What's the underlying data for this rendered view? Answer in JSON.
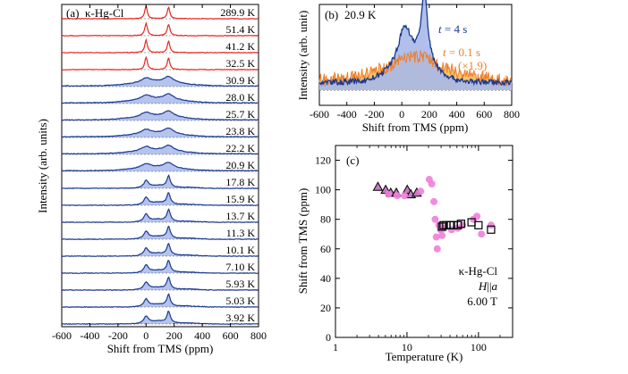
{
  "colors": {
    "red": "#e8261e",
    "blue": "#1a3a8f",
    "fill_blue": "#a8b8ea",
    "orange": "#ef7d26",
    "fill_orange": "#f6c56b",
    "pink": "#ef7fd9",
    "triangle_fill": "#c779bf"
  },
  "chart_data": [
    {
      "type": "line",
      "panel_label": "(a)",
      "title": "κ-Hg-Cl",
      "xlabel": "Shift from TMS (ppm)",
      "ylabel": "Intensity (arb. units)",
      "xlim": [
        -600,
        800
      ],
      "xticks": [
        "-600",
        "-400",
        "-200",
        "0",
        "200",
        "400",
        "600",
        "800"
      ],
      "series": [
        {
          "name": "289.9 K",
          "temperature_K": 289.9,
          "style": "two-peak",
          "color": "red"
        },
        {
          "name": "51.4 K",
          "temperature_K": 51.4,
          "style": "two-peak",
          "color": "red"
        },
        {
          "name": "41.2 K",
          "temperature_K": 41.2,
          "style": "two-peak",
          "color": "red"
        },
        {
          "name": "32.5 K",
          "temperature_K": 32.5,
          "style": "two-peak",
          "color": "red"
        },
        {
          "name": "30.9 K",
          "temperature_K": 30.9,
          "style": "broad",
          "color": "blue"
        },
        {
          "name": "28.0 K",
          "temperature_K": 28.0,
          "style": "broad",
          "color": "blue"
        },
        {
          "name": "25.7 K",
          "temperature_K": 25.7,
          "style": "broad",
          "color": "blue"
        },
        {
          "name": "23.8 K",
          "temperature_K": 23.8,
          "style": "broad",
          "color": "blue"
        },
        {
          "name": "22.2 K",
          "temperature_K": 22.2,
          "style": "broad",
          "color": "blue"
        },
        {
          "name": "20.9 K",
          "temperature_K": 20.9,
          "style": "broad",
          "color": "blue"
        },
        {
          "name": "17.8 K",
          "temperature_K": 17.8,
          "style": "split",
          "color": "blue"
        },
        {
          "name": "15.9 K",
          "temperature_K": 15.9,
          "style": "split",
          "color": "blue"
        },
        {
          "name": "13.7 K",
          "temperature_K": 13.7,
          "style": "split",
          "color": "blue"
        },
        {
          "name": "11.3 K",
          "temperature_K": 11.3,
          "style": "split",
          "color": "blue"
        },
        {
          "name": "10.1 K",
          "temperature_K": 10.1,
          "style": "split",
          "color": "blue"
        },
        {
          "name": "7.10 K",
          "temperature_K": 7.1,
          "style": "split",
          "color": "blue"
        },
        {
          "name": "5.93 K",
          "temperature_K": 5.93,
          "style": "split",
          "color": "blue"
        },
        {
          "name": "5.03 K",
          "temperature_K": 5.03,
          "style": "split",
          "color": "blue"
        },
        {
          "name": "3.92 K",
          "temperature_K": 3.92,
          "style": "split",
          "color": "blue"
        }
      ],
      "peak_positions_ppm": [
        0,
        160
      ]
    },
    {
      "type": "area",
      "panel_label": "(b)",
      "title": "20.9 K",
      "xlabel": "Shift from TMS (ppm)",
      "ylabel": "Intensity (arb. unit)",
      "xlim": [
        -600,
        800
      ],
      "xticks": [
        "-600",
        "-400",
        "-200",
        "0",
        "200",
        "400",
        "600",
        "800"
      ],
      "series": [
        {
          "name": "t = 4 s",
          "legend_main": "t",
          "legend_rest": " = 4 s",
          "color": "blue"
        },
        {
          "name": "t = 0.1 s (×1.9)",
          "legend_main": "t",
          "legend_rest": " = 0.1 s",
          "legend_scale": "(×1.9)",
          "color": "orange"
        }
      ]
    },
    {
      "type": "scatter",
      "panel_label": "(c)",
      "xscale": "log",
      "xlabel": "Temperature (K)",
      "ylabel": "Shift from TMS (ppm)",
      "xlim": [
        1,
        300
      ],
      "ylim": [
        0,
        130
      ],
      "xticks": [
        1,
        10,
        100
      ],
      "xtick_labels": [
        "1",
        "10",
        "100"
      ],
      "yticks": [
        0,
        20,
        40,
        60,
        80,
        100,
        120
      ],
      "ytick_labels": [
        "0",
        "20",
        "40",
        "60",
        "80",
        "100",
        "120"
      ],
      "annotation": {
        "line1": "κ-Hg-Cl",
        "line2_H": "H",
        "line2_par": "||",
        "line2_a": "a",
        "line3": "6.00 T"
      },
      "series": [
        {
          "name": "triangles",
          "marker": "triangle",
          "x": [
            3.92,
            5.03,
            5.93,
            7.1,
            10.1,
            11.3,
            13.7
          ],
          "y": [
            102,
            100,
            98,
            98,
            100,
            97,
            98
          ]
        },
        {
          "name": "circles",
          "marker": "circle",
          "x": [
            5.5,
            7.3,
            9.2,
            15.5,
            20.5,
            22.2,
            23.8,
            24.8,
            25.7,
            26.5,
            28.0,
            29.5,
            30.9,
            33,
            42,
            51.4,
            60,
            85,
            95,
            110,
            150
          ],
          "y": [
            97,
            96,
            96,
            99,
            107,
            104,
            92,
            80,
            68,
            60,
            76,
            73,
            69,
            74,
            73,
            74,
            76,
            80,
            82,
            70,
            76
          ]
        },
        {
          "name": "squares",
          "marker": "square",
          "x": [
            30.9,
            32.5,
            35.5,
            40,
            41.2,
            45,
            51.4,
            57,
            80,
            100,
            150
          ],
          "y": [
            75,
            76,
            76,
            76,
            76,
            76,
            76,
            77,
            78,
            76,
            73
          ]
        }
      ]
    }
  ]
}
